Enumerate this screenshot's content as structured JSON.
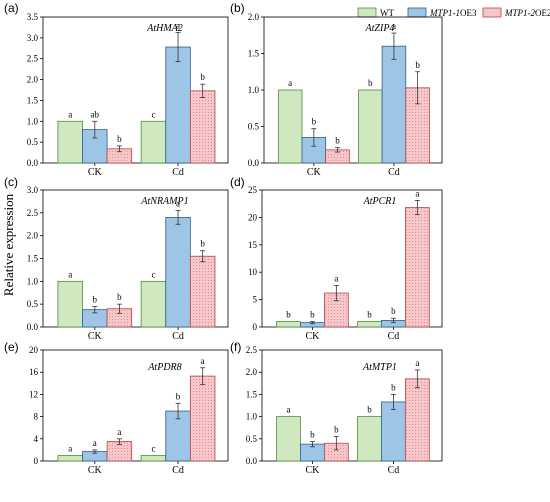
{
  "figure": {
    "ylabel": "Relative expression",
    "legend": [
      {
        "label_plain": "WT",
        "label_italic": "",
        "label_suffix": ""
      },
      {
        "label_plain": "",
        "label_italic": "MTP1-1",
        "label_suffix": "OE3"
      },
      {
        "label_plain": "",
        "label_italic": "MTP1-2",
        "label_suffix": "OE2"
      }
    ]
  },
  "colors": {
    "wt_fill": "#cfe8bf",
    "wt_stroke": "#4e8f3a",
    "oe3_fill": "#9dc6e6",
    "oe3_stroke": "#2f5f8a",
    "oe2_fill": "#f7c7c9",
    "oe2_stroke": "#b5454d",
    "oe2_dot": "#d9818a"
  },
  "chart_data": [
    {
      "type": "bar",
      "panel": "(a)",
      "title": "AtHMA2",
      "categories": [
        "CK",
        "Cd"
      ],
      "ylim": [
        0,
        3.5
      ],
      "yticks": [
        0.0,
        0.5,
        1.0,
        1.5,
        2.0,
        2.5,
        3.0,
        3.5
      ],
      "tick_decimals": 1,
      "series": [
        {
          "name": "WT",
          "values": [
            1.0,
            1.0
          ],
          "errors": [
            0,
            0
          ],
          "letters": [
            "a",
            "c"
          ]
        },
        {
          "name": "MTP1-1OE3",
          "values": [
            0.8,
            2.78
          ],
          "errors": [
            0.2,
            0.35
          ],
          "letters": [
            "ab",
            "a"
          ]
        },
        {
          "name": "MTP1-2OE2",
          "values": [
            0.34,
            1.73
          ],
          "errors": [
            0.07,
            0.16
          ],
          "letters": [
            "b",
            "b"
          ]
        }
      ]
    },
    {
      "type": "bar",
      "panel": "(b)",
      "title": "AtZIP4",
      "categories": [
        "CK",
        "Cd"
      ],
      "ylim": [
        0,
        2.0
      ],
      "yticks": [
        0.0,
        0.5,
        1.0,
        1.5,
        2.0
      ],
      "tick_decimals": 1,
      "series": [
        {
          "name": "WT",
          "values": [
            1.0,
            1.0
          ],
          "errors": [
            0,
            0
          ],
          "letters": [
            "a",
            "b"
          ]
        },
        {
          "name": "MTP1-1OE3",
          "values": [
            0.35,
            1.6
          ],
          "errors": [
            0.12,
            0.18
          ],
          "letters": [
            "b",
            "a"
          ]
        },
        {
          "name": "MTP1-2OE2",
          "values": [
            0.18,
            1.03
          ],
          "errors": [
            0.03,
            0.22
          ],
          "letters": [
            "b",
            "b"
          ]
        }
      ]
    },
    {
      "type": "bar",
      "panel": "(c)",
      "title": "AtNRAMP1",
      "categories": [
        "CK",
        "Cd"
      ],
      "ylim": [
        0,
        3.0
      ],
      "yticks": [
        0.0,
        0.5,
        1.0,
        1.5,
        2.0,
        2.5,
        3.0
      ],
      "tick_decimals": 1,
      "series": [
        {
          "name": "WT",
          "values": [
            1.0,
            1.0
          ],
          "errors": [
            0,
            0
          ],
          "letters": [
            "a",
            "c"
          ]
        },
        {
          "name": "MTP1-1OE3",
          "values": [
            0.38,
            2.4
          ],
          "errors": [
            0.07,
            0.15
          ],
          "letters": [
            "b",
            "a"
          ]
        },
        {
          "name": "MTP1-2OE2",
          "values": [
            0.4,
            1.55
          ],
          "errors": [
            0.1,
            0.12
          ],
          "letters": [
            "b",
            "b"
          ]
        }
      ]
    },
    {
      "type": "bar",
      "panel": "(d)",
      "title": "AtPCR1",
      "categories": [
        "CK",
        "Cd"
      ],
      "ylim": [
        0,
        25
      ],
      "yticks": [
        0,
        5,
        10,
        15,
        20,
        25
      ],
      "tick_decimals": 0,
      "series": [
        {
          "name": "WT",
          "values": [
            1.0,
            1.0
          ],
          "errors": [
            0,
            0
          ],
          "letters": [
            "b",
            "b"
          ]
        },
        {
          "name": "MTP1-1OE3",
          "values": [
            0.8,
            1.2
          ],
          "errors": [
            0.2,
            0.4
          ],
          "letters": [
            "b",
            "b"
          ]
        },
        {
          "name": "MTP1-2OE2",
          "values": [
            6.2,
            21.8
          ],
          "errors": [
            1.4,
            1.3
          ],
          "letters": [
            "a",
            "a"
          ]
        }
      ]
    },
    {
      "type": "bar",
      "panel": "(e)",
      "title": "AtPDR8",
      "categories": [
        "CK",
        "Cd"
      ],
      "ylim": [
        0,
        20
      ],
      "yticks": [
        0,
        4,
        8,
        12,
        16,
        20
      ],
      "tick_decimals": 0,
      "series": [
        {
          "name": "WT",
          "values": [
            1.0,
            1.0
          ],
          "errors": [
            0,
            0
          ],
          "letters": [
            "a",
            "c"
          ]
        },
        {
          "name": "MTP1-1OE3",
          "values": [
            1.7,
            9.0
          ],
          "errors": [
            0.3,
            1.4
          ],
          "letters": [
            "a",
            "b"
          ]
        },
        {
          "name": "MTP1-2OE2",
          "values": [
            3.5,
            15.3
          ],
          "errors": [
            0.5,
            1.5
          ],
          "letters": [
            "a",
            "a"
          ]
        }
      ]
    },
    {
      "type": "bar",
      "panel": "(f)",
      "title": "AtMTP1",
      "categories": [
        "CK",
        "Cd"
      ],
      "ylim": [
        0,
        2.5
      ],
      "yticks": [
        0.0,
        0.5,
        1.0,
        1.5,
        2.0,
        2.5
      ],
      "tick_decimals": 1,
      "series": [
        {
          "name": "WT",
          "values": [
            1.0,
            1.0
          ],
          "errors": [
            0,
            0
          ],
          "letters": [
            "a",
            "b"
          ]
        },
        {
          "name": "MTP1-1OE3",
          "values": [
            0.38,
            1.33
          ],
          "errors": [
            0.06,
            0.17
          ],
          "letters": [
            "b",
            "b"
          ]
        },
        {
          "name": "MTP1-2OE2",
          "values": [
            0.4,
            1.85
          ],
          "errors": [
            0.15,
            0.2
          ],
          "letters": [
            "b",
            "a"
          ]
        }
      ]
    }
  ]
}
